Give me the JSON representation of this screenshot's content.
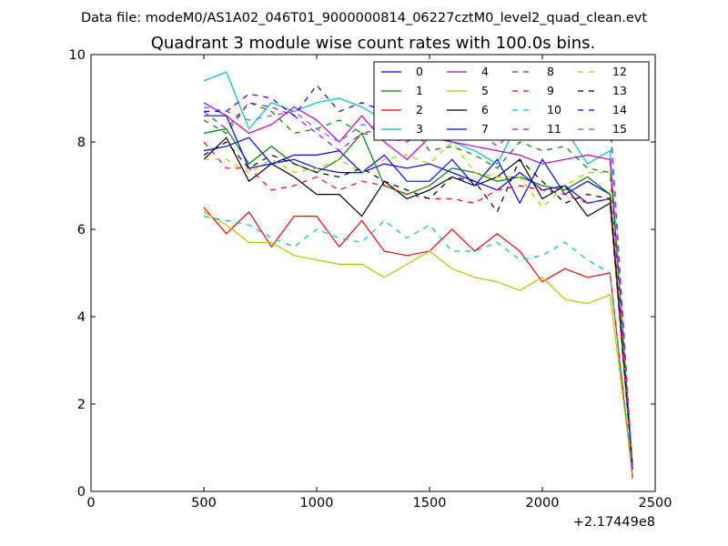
{
  "chart_data": {
    "type": "line",
    "suptitle": "Data file: modeM0/AS1A02_046T01_9000000814_06227cztM0_level2_quad_clean.evt",
    "title": "Quadrant 3 module wise count rates with 100.0s bins.",
    "xlabel": "",
    "ylabel": "",
    "xlim": [
      0,
      2500
    ],
    "ylim": [
      0,
      10
    ],
    "xticks": [
      "0",
      "500",
      "1000",
      "1500",
      "2000",
      "2500"
    ],
    "yticks": [
      "0",
      "2",
      "4",
      "6",
      "8",
      "10"
    ],
    "x_offset_label": "+2.17449e8",
    "x": [
      500,
      600,
      700,
      800,
      900,
      1000,
      1100,
      1200,
      1300,
      1400,
      1500,
      1600,
      1700,
      1800,
      1900,
      2000,
      2100,
      2200,
      2300,
      2400
    ],
    "legend_position": "top-right",
    "series": [
      {
        "name": "0",
        "color": "#0000ff",
        "style": "solid",
        "values": [
          7.8,
          7.9,
          8.1,
          7.5,
          7.7,
          7.7,
          7.8,
          7.3,
          7.7,
          7.1,
          7.1,
          7.6,
          7.0,
          7.6,
          6.6,
          7.6,
          6.8,
          7.1,
          6.8,
          0.5
        ]
      },
      {
        "name": "1",
        "color": "#008000",
        "style": "solid",
        "values": [
          8.2,
          8.3,
          7.5,
          7.9,
          7.5,
          7.3,
          7.6,
          8.2,
          7.0,
          6.8,
          7.0,
          7.4,
          7.3,
          7.1,
          7.2,
          7.0,
          6.9,
          7.2,
          6.8,
          0.6
        ]
      },
      {
        "name": "2",
        "color": "#ff0000",
        "style": "solid",
        "values": [
          6.5,
          5.9,
          6.4,
          5.6,
          6.3,
          6.3,
          5.6,
          6.2,
          5.5,
          5.4,
          5.5,
          6.0,
          5.5,
          5.9,
          5.5,
          4.8,
          5.1,
          4.9,
          5.0,
          0.3
        ]
      },
      {
        "name": "3",
        "color": "#00bfbf",
        "style": "solid",
        "values": [
          9.4,
          9.6,
          8.3,
          8.9,
          8.7,
          8.9,
          9.0,
          8.8,
          8.5,
          8.5,
          8.3,
          8.0,
          7.8,
          7.5,
          8.5,
          8.2,
          8.3,
          7.5,
          7.8,
          0.5
        ]
      },
      {
        "name": "4",
        "color": "#bf00bf",
        "style": "solid",
        "values": [
          8.9,
          8.6,
          8.2,
          8.4,
          8.8,
          8.5,
          8.0,
          8.6,
          8.0,
          7.6,
          8.1,
          8.0,
          7.9,
          7.8,
          7.7,
          7.5,
          7.6,
          7.7,
          7.6,
          0.5
        ]
      },
      {
        "name": "5",
        "color": "#bfbf00",
        "style": "solid",
        "values": [
          6.4,
          6.1,
          5.7,
          5.7,
          5.4,
          5.3,
          5.2,
          5.2,
          4.9,
          5.2,
          5.5,
          5.1,
          4.9,
          4.8,
          4.6,
          4.9,
          4.4,
          4.3,
          4.5,
          0.4
        ]
      },
      {
        "name": "6",
        "color": "#000000",
        "style": "solid",
        "values": [
          7.6,
          8.1,
          7.1,
          7.5,
          7.2,
          6.8,
          6.8,
          6.3,
          7.1,
          6.7,
          6.9,
          7.2,
          7.0,
          7.2,
          7.6,
          6.7,
          7.0,
          6.3,
          6.6,
          0.5
        ]
      },
      {
        "name": "7",
        "color": "#0000ff",
        "style": "solid",
        "values": [
          8.6,
          8.6,
          7.4,
          7.5,
          7.6,
          7.4,
          7.3,
          7.3,
          7.5,
          7.4,
          7.5,
          7.3,
          7.1,
          6.9,
          7.3,
          6.9,
          7.0,
          6.6,
          6.7,
          0.5
        ]
      },
      {
        "name": "8",
        "color": "#008000",
        "style": "dashed",
        "values": [
          8.5,
          8.2,
          8.9,
          8.7,
          8.2,
          8.3,
          8.5,
          8.2,
          8.3,
          8.5,
          7.8,
          7.9,
          7.7,
          7.4,
          8.0,
          7.8,
          7.9,
          7.4,
          7.3,
          0.5
        ]
      },
      {
        "name": "9",
        "color": "#ff0000",
        "style": "dashed",
        "values": [
          8.0,
          7.4,
          7.4,
          6.9,
          7.0,
          7.2,
          6.9,
          7.1,
          7.0,
          6.8,
          6.7,
          6.7,
          6.6,
          6.9,
          7.0,
          6.9,
          6.8,
          6.6,
          6.7,
          0.4
        ]
      },
      {
        "name": "10",
        "color": "#00bfbf",
        "style": "dashed",
        "values": [
          6.3,
          6.2,
          6.1,
          5.8,
          5.6,
          6.0,
          5.8,
          5.7,
          6.2,
          5.8,
          6.1,
          5.5,
          5.5,
          5.7,
          5.3,
          5.4,
          5.7,
          5.3,
          5.0,
          0.4
        ]
      },
      {
        "name": "11",
        "color": "#bf00bf",
        "style": "dashed",
        "values": [
          8.7,
          8.3,
          8.9,
          8.8,
          8.6,
          8.2,
          7.8,
          8.2,
          8.1,
          8.0,
          8.3,
          8.1,
          8.3,
          7.9,
          8.4,
          8.1,
          8.6,
          8.5,
          8.4,
          0.5
        ]
      },
      {
        "name": "12",
        "color": "#bfbf00",
        "style": "dashed",
        "values": [
          7.6,
          7.6,
          7.3,
          7.6,
          7.3,
          7.4,
          7.6,
          7.3,
          7.6,
          7.7,
          7.5,
          8.0,
          7.3,
          7.2,
          7.2,
          6.5,
          7.0,
          7.3,
          7.3,
          0.4
        ]
      },
      {
        "name": "13",
        "color": "#000000",
        "style": "dashed",
        "values": [
          7.7,
          8.0,
          7.4,
          7.7,
          7.5,
          7.3,
          7.2,
          7.4,
          7.1,
          6.9,
          6.7,
          7.2,
          7.1,
          6.4,
          7.6,
          7.1,
          6.6,
          6.8,
          6.7,
          0.5
        ]
      },
      {
        "name": "14",
        "color": "#0000ff",
        "style": "dashed",
        "values": [
          8.7,
          8.7,
          9.1,
          9.0,
          8.6,
          9.3,
          8.7,
          8.9,
          8.7,
          8.8,
          8.6,
          8.5,
          8.2,
          8.4,
          8.6,
          8.2,
          8.5,
          8.7,
          8.6,
          0.5
        ]
      },
      {
        "name": "15",
        "color": "#5f5fff",
        "style": "dashed",
        "values": [
          8.8,
          8.7,
          8.5,
          8.6,
          8.7,
          8.3,
          8.0,
          8.4,
          8.3,
          8.7,
          8.3,
          8.5,
          8.4,
          8.6,
          8.6,
          8.7,
          8.6,
          8.5,
          8.5,
          0.5
        ]
      }
    ]
  }
}
